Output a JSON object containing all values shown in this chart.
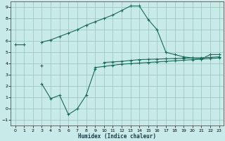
{
  "xlabel": "Humidex (Indice chaleur)",
  "background_color": "#c8eae8",
  "grid_color": "#a0c8c0",
  "line_color": "#1a6a5a",
  "x_values": [
    0,
    1,
    2,
    3,
    4,
    5,
    6,
    7,
    8,
    9,
    10,
    11,
    12,
    13,
    14,
    15,
    16,
    17,
    18,
    19,
    20,
    21,
    22,
    23
  ],
  "line1_y": [
    5.7,
    5.7,
    null,
    null,
    null,
    null,
    null,
    null,
    null,
    null,
    null,
    null,
    null,
    null,
    null,
    null,
    null,
    null,
    null,
    null,
    null,
    null,
    null,
    null
  ],
  "line1b_y": [
    null,
    null,
    null,
    5.9,
    6.1,
    6.4,
    6.7,
    7.0,
    7.4,
    7.7,
    8.0,
    8.3,
    8.7,
    9.1,
    9.1,
    7.9,
    7.0,
    5.0,
    4.8,
    4.6,
    4.5,
    4.4,
    4.8,
    4.8
  ],
  "line2_y": [
    null,
    null,
    null,
    3.8,
    null,
    null,
    null,
    null,
    null,
    3.65,
    3.75,
    3.85,
    3.95,
    4.0,
    4.05,
    4.1,
    4.15,
    4.2,
    4.25,
    4.3,
    4.35,
    4.4,
    4.45,
    4.5
  ],
  "line3_y": [
    null,
    null,
    null,
    null,
    null,
    null,
    null,
    null,
    null,
    null,
    4.1,
    4.15,
    4.2,
    4.28,
    4.35,
    4.38,
    4.4,
    4.43,
    4.45,
    4.48,
    4.5,
    4.52,
    4.55,
    4.6
  ],
  "line4_y": [
    null,
    null,
    null,
    2.2,
    0.9,
    1.2,
    -0.5,
    0.0,
    1.2,
    3.5,
    null,
    null,
    null,
    null,
    null,
    null,
    null,
    null,
    null,
    null,
    null,
    null,
    null,
    null
  ],
  "xlim": [
    -0.5,
    23.5
  ],
  "ylim": [
    -1.5,
    9.5
  ],
  "yticks": [
    -1,
    0,
    1,
    2,
    3,
    4,
    5,
    6,
    7,
    8,
    9
  ],
  "xticks": [
    0,
    1,
    2,
    3,
    4,
    5,
    6,
    7,
    8,
    9,
    10,
    11,
    12,
    13,
    14,
    15,
    16,
    17,
    18,
    19,
    20,
    21,
    22,
    23
  ]
}
